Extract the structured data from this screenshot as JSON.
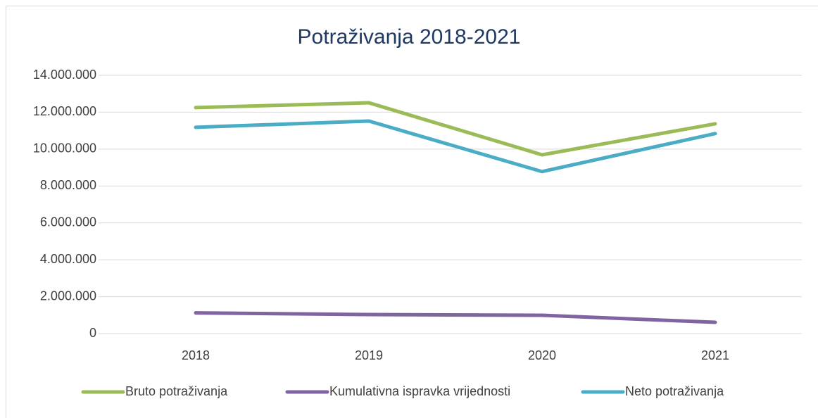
{
  "chart_data": {
    "type": "line",
    "title": "Potraživanja 2018-2021",
    "categories": [
      "2018",
      "2019",
      "2020",
      "2021"
    ],
    "series": [
      {
        "name": "Bruto potraživanja",
        "color": "#9bbb59",
        "values": [
          12250000,
          12510000,
          9690000,
          11370000
        ]
      },
      {
        "name": "Kumulativna ispravka vrijednosti",
        "color": "#8064a2",
        "values": [
          1120000,
          1030000,
          990000,
          610000
        ]
      },
      {
        "name": "Neto potraživanja",
        "color": "#4bacc6",
        "values": [
          11180000,
          11520000,
          8780000,
          10840000
        ]
      }
    ],
    "ylim": [
      0,
      14000000
    ],
    "yticks": [
      0,
      {
        "value": 2000000,
        "label": "2.000.000"
      },
      {
        "value": 4000000,
        "label": "4.000.000"
      },
      {
        "value": 6000000,
        "label": "6.000.000"
      },
      {
        "value": 8000000,
        "label": "8.000.000"
      },
      {
        "value": 10000000,
        "label": "10.000.000"
      },
      {
        "value": 12000000,
        "label": "12.000.000"
      },
      {
        "value": 14000000,
        "label": "14.000.000"
      }
    ],
    "grid": true,
    "legend": "bottom"
  }
}
